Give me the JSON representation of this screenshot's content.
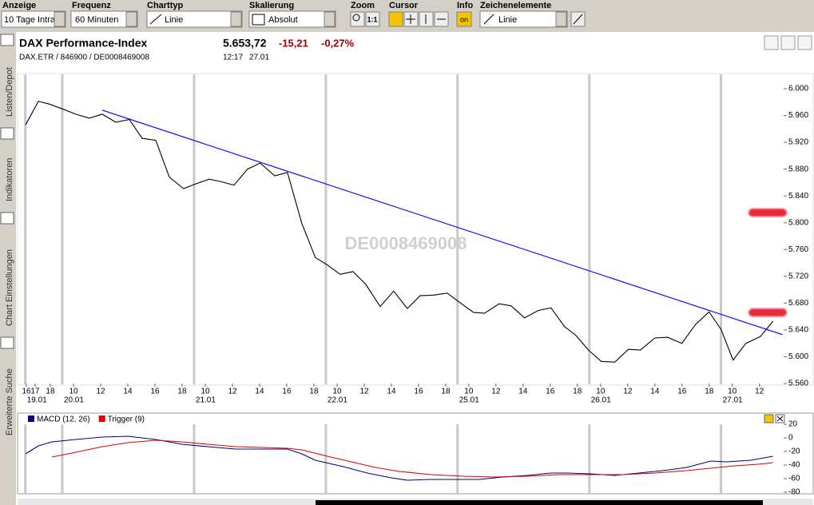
{
  "toolbar": {
    "anzeige": {
      "label": "Anzeige",
      "value": "10 Tage Intra"
    },
    "frequenz": {
      "label": "Frequenz",
      "value": "60 Minuten"
    },
    "charttyp": {
      "label": "Charttyp",
      "value": "Linie"
    },
    "skalierung": {
      "label": "Skalierung",
      "value": "Absolut"
    },
    "zoom": {
      "label": "Zoom",
      "button": "1:1"
    },
    "cursor": {
      "label": "Cursor"
    },
    "info": {
      "label": "Info",
      "button": "on"
    },
    "zeichenelemente": {
      "label": "Zeichenelemente",
      "value": "Linie"
    }
  },
  "sidebar": [
    "Listen/Depot",
    "Indikatoren",
    "Chart Einstellungen",
    "Erweiterte Suche"
  ],
  "header": {
    "title": "DAX Performance-Index",
    "subtitle": "DAX.ETR / 846900 / DE0008469008",
    "price": "5.653,72",
    "change": "-15,21",
    "change_pct": "-0,27%",
    "time": "12:17",
    "date": "27.01"
  },
  "chart_data": [
    {
      "type": "line",
      "watermark": "DE0008469008",
      "color": "#000000",
      "x": [
        0.12,
        1.06,
        1.88,
        2.82,
        3.82,
        4.82,
        5.76,
        6.76,
        7.76,
        8.71,
        9.71,
        10.71,
        11.76,
        12.65,
        13.65,
        14.59,
        15.47,
        16.47,
        17.41,
        18.47,
        19.41,
        20.47,
        21.47,
        22.35,
        23.29,
        24.24,
        25.18,
        26.24,
        27.24,
        28.24,
        29.18,
        30.18,
        31.18,
        32.18,
        33.12,
        33.94,
        35,
        35.88,
        36.88,
        37.88,
        38.82,
        39.82,
        40.65,
        41.59,
        42.53,
        43.53,
        44.53,
        45.41,
        46.47,
        47.41,
        48.47,
        49.47,
        50.47,
        51.35,
        52.24,
        53.18,
        54.24,
        55.18
      ],
      "values": [
        5946,
        5981,
        5977,
        5970,
        5962,
        5956,
        5962,
        5950,
        5954,
        5926,
        5923,
        5868,
        5851,
        5858,
        5865,
        5861,
        5856,
        5880,
        5889,
        5870,
        5875,
        5799,
        5748,
        5737,
        5723,
        5727,
        5708,
        5675,
        5698,
        5672,
        5691,
        5692,
        5695,
        5680,
        5666,
        5665,
        5679,
        5676,
        5658,
        5669,
        5673,
        5645,
        5632,
        5610,
        5593,
        5592,
        5611,
        5610,
        5628,
        5629,
        5620,
        5648,
        5667,
        5641,
        5595,
        5620,
        5630,
        5653
      ],
      "trendline": {
        "x": [
          5.76,
          55.88
        ],
        "values": [
          5968,
          5633
        ],
        "color": "#0000ff"
      },
      "alerts": {
        "values": [
          5815,
          5666
        ],
        "color": "#e8283c"
      },
      "xlim": [
        0,
        56.2
      ],
      "ylim": [
        5560,
        6000
      ],
      "yticks": [
        {
          "value": 5560,
          "label": "5.560"
        },
        {
          "value": 5600,
          "label": "5.600"
        },
        {
          "value": 5640,
          "label": "5.640"
        },
        {
          "value": 5680,
          "label": "5.680"
        },
        {
          "value": 5720,
          "label": "5.720"
        },
        {
          "value": 5760,
          "label": "5.760"
        },
        {
          "value": 5800,
          "label": "5.800"
        },
        {
          "value": 5840,
          "label": "5.840"
        },
        {
          "value": 5880,
          "label": "5.880"
        },
        {
          "value": 5920,
          "label": "5.920"
        },
        {
          "value": 5960,
          "label": "5.960"
        },
        {
          "value": 6000,
          "label": "6.000"
        }
      ],
      "xticks": [
        {
          "value": 0.18,
          "label": "16"
        },
        {
          "value": 0.82,
          "label": "17"
        },
        {
          "value": 1.94,
          "label": "18"
        },
        {
          "value": 3.65,
          "label": "10"
        },
        {
          "value": 5.65,
          "label": "12"
        },
        {
          "value": 7.65,
          "label": "14"
        },
        {
          "value": 9.65,
          "label": "16"
        },
        {
          "value": 11.65,
          "label": "18"
        },
        {
          "value": 13.36,
          "label": "10"
        },
        {
          "value": 15.36,
          "label": "12"
        },
        {
          "value": 17.36,
          "label": "14"
        },
        {
          "value": 19.36,
          "label": "16"
        },
        {
          "value": 21.36,
          "label": "18"
        },
        {
          "value": 23.07,
          "label": "10"
        },
        {
          "value": 25.07,
          "label": "12"
        },
        {
          "value": 27.07,
          "label": "14"
        },
        {
          "value": 29.07,
          "label": "16"
        },
        {
          "value": 31.07,
          "label": "18"
        },
        {
          "value": 32.77,
          "label": "10"
        },
        {
          "value": 34.77,
          "label": "12"
        },
        {
          "value": 36.77,
          "label": "14"
        },
        {
          "value": 38.77,
          "label": "16"
        },
        {
          "value": 40.77,
          "label": "18"
        },
        {
          "value": 42.48,
          "label": "10"
        },
        {
          "value": 44.48,
          "label": "12"
        },
        {
          "value": 46.48,
          "label": "14"
        },
        {
          "value": 48.48,
          "label": "16"
        },
        {
          "value": 50.48,
          "label": "18"
        },
        {
          "value": 52.18,
          "label": "10"
        },
        {
          "value": 54.18,
          "label": "12"
        }
      ],
      "day_ticks": [
        {
          "value": 0.1,
          "label": "19.01"
        },
        {
          "value": 2.82,
          "label": "20.01"
        },
        {
          "value": 12.53,
          "label": "21.01"
        },
        {
          "value": 22.24,
          "label": "22.01"
        },
        {
          "value": 31.94,
          "label": "25.01"
        },
        {
          "value": 41.65,
          "label": "26.01"
        },
        {
          "value": 51.35,
          "label": "27.01"
        }
      ]
    },
    {
      "type": "line",
      "xlim": [
        0,
        56.2
      ],
      "ylim": [
        -80,
        20
      ],
      "yticks": [
        20,
        0,
        -20,
        -40,
        -60,
        -80
      ],
      "series": [
        {
          "name": "MACD (12, 26)",
          "color": "#000080",
          "x": [
            0.12,
            1.06,
            2.06,
            3.82,
            5.76,
            7.65,
            9.71,
            11.65,
            13.53,
            15.59,
            17.65,
            19.41,
            20.47,
            21.47,
            23.53,
            25.29,
            27.06,
            28.24,
            30,
            31.76,
            33.53,
            35.29,
            37.06,
            38.82,
            40,
            41.76,
            43.53,
            45.29,
            47.06,
            48.82,
            50.59,
            51.76,
            53.53,
            55.18
          ],
          "values": [
            -23.5,
            -11.8,
            -5.9,
            -2.4,
            1.2,
            2.4,
            -2.4,
            -9.4,
            -12.9,
            -16.5,
            -16.5,
            -16.5,
            -23.5,
            -32.9,
            -42.4,
            -51.8,
            -58.8,
            -62.4,
            -61.2,
            -61.2,
            -61.2,
            -57.6,
            -55.3,
            -51.8,
            -51.8,
            -52.9,
            -55.3,
            -51.8,
            -48.2,
            -43.5,
            -34.1,
            -35.3,
            -32.9,
            -27.1
          ]
        },
        {
          "name": "Trigger (9)",
          "color": "#e00000",
          "x": [
            2.06,
            3.82,
            5.76,
            7.65,
            9.71,
            11.65,
            13.53,
            15.59,
            17.65,
            19.41,
            20.47,
            22.35,
            24.12,
            25.88,
            27.65,
            30,
            32.35,
            34.71,
            37.06,
            39.41,
            41.76,
            44.12,
            46.47,
            48.82,
            50.59,
            52.35,
            54.12,
            55.18
          ],
          "values": [
            -28.2,
            -21.2,
            -12.9,
            -7.1,
            -3.5,
            -5.9,
            -9.4,
            -12.9,
            -14.1,
            -15.3,
            -17.6,
            -27.1,
            -35.3,
            -43.5,
            -49.4,
            -54.1,
            -56.5,
            -57.6,
            -56.5,
            -54.1,
            -54.1,
            -54.1,
            -51.8,
            -48.2,
            -44.7,
            -41.2,
            -38.8,
            -36.5
          ]
        }
      ]
    }
  ]
}
